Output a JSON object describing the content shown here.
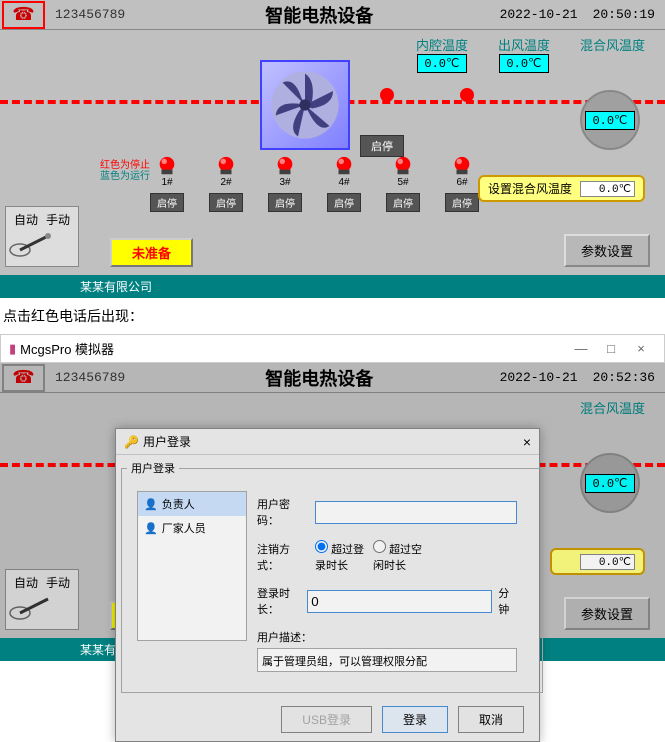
{
  "header": {
    "id": "123456789",
    "title": "智能电热设备",
    "date": "2022-10-21",
    "time1": "20:50:19",
    "time2": "20:52:36"
  },
  "temps": {
    "inner_label": "内腔温度",
    "inner_value": "0.0℃",
    "outlet_label": "出风温度",
    "outlet_value": "0.0℃",
    "mix_label": "混合风温度",
    "mix_value": "0.0℃"
  },
  "status_note": {
    "line1": "红色为停止",
    "line2": "蓝色为运行"
  },
  "main_stop": "启停",
  "heaters": [
    {
      "label": "1#",
      "btn": "启停",
      "color": "#ff0000"
    },
    {
      "label": "2#",
      "btn": "启停",
      "color": "#ff0000"
    },
    {
      "label": "3#",
      "btn": "启停",
      "color": "#ff0000"
    },
    {
      "label": "4#",
      "btn": "启停",
      "color": "#ff0000"
    },
    {
      "label": "5#",
      "btn": "启停",
      "color": "#ff0000"
    },
    {
      "label": "6#",
      "btn": "启停",
      "color": "#ff0000"
    }
  ],
  "set_temp": {
    "label": "设置混合风温度",
    "value": "0.0℃"
  },
  "mode": {
    "auto": "自动",
    "manual": "手动"
  },
  "ready": "未准备",
  "param_btn": "参数设置",
  "footer": "某某有限公司",
  "caption": "点击红色电话后出现：",
  "sim_window": {
    "title": "McgsPro 模拟器"
  },
  "dialog": {
    "title": "用户登录",
    "fieldset_legend": "用户登录",
    "users": [
      {
        "icon": "👤",
        "name": "负责人",
        "selected": true
      },
      {
        "icon": "👤",
        "name": "厂家人员",
        "selected": false
      }
    ],
    "pwd_label": "用户密码：",
    "pwd_value": "",
    "logout_label": "注销方式：",
    "logout_opt1": "超过登录时长",
    "logout_opt2": "超过空闲时长",
    "duration_label": "登录时长：",
    "duration_value": "0",
    "duration_unit": "分钟",
    "desc_label": "用户描述：",
    "desc_value": "属于管理员组，可以管理权限分配",
    "btn_usb": "USB登录",
    "btn_login": "登录",
    "btn_cancel": "取消"
  }
}
